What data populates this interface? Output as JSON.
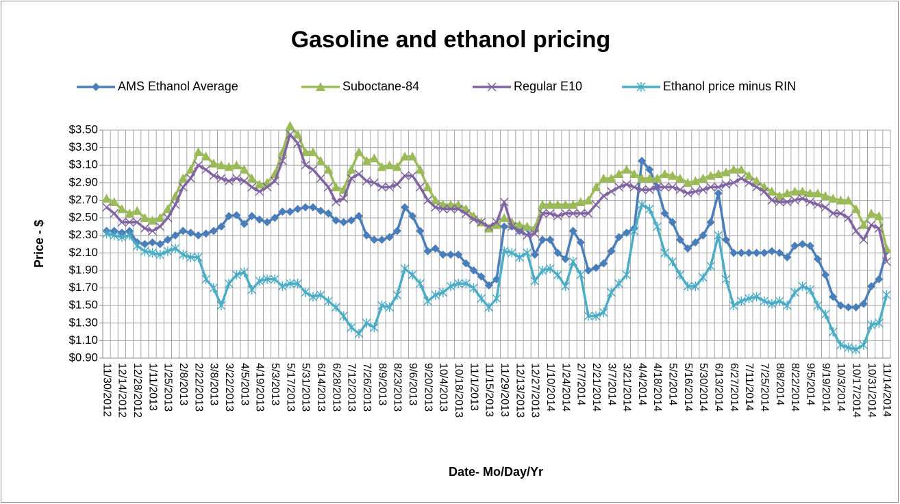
{
  "chart_data": {
    "type": "line",
    "title": "Gasoline and ethanol pricing",
    "x_label": "Date- Mo/Day/Yr",
    "y_label": "Price - $",
    "categories": [
      "11/30/2012",
      null,
      "12/14/2012",
      null,
      "12/28/2012",
      null,
      "1/11/2013",
      null,
      "1/25/2013",
      null,
      "2/8/2013",
      null,
      "2/22/2013",
      null,
      "3/8/2013",
      null,
      "3/22/2013",
      null,
      "4/5/2013",
      null,
      "4/19/2013",
      null,
      "5/3/2013",
      null,
      "5/17/2013",
      null,
      "5/31/2013",
      null,
      "6/14/2013",
      null,
      "6/28/2013",
      null,
      "7/12/2013",
      null,
      "7/26/2013",
      null,
      "8/9/2013",
      null,
      "8/23/2013",
      null,
      "9/6/2013",
      null,
      "9/20/2013",
      null,
      "10/4/2013",
      null,
      "10/18/2013",
      null,
      "11/1/2013",
      null,
      "11/15/2013",
      null,
      "11/29/2013",
      null,
      "12/13/2013",
      null,
      "12/27/2013",
      null,
      "1/10/2014",
      null,
      "1/24/2014",
      null,
      "2/7/2014",
      null,
      "2/21/2014",
      null,
      "3/7/2014",
      null,
      "3/21/2014",
      null,
      "4/4/2014",
      null,
      "4/18/2014",
      null,
      "5/2/2014",
      null,
      "5/16/2014",
      null,
      "5/30/2014",
      null,
      "6/13/2014",
      null,
      "6/27/2014",
      null,
      "7/11/2014",
      null,
      "7/25/2014",
      null,
      "8/8/2014",
      null,
      "8/22/2014",
      null,
      "9/5/2014",
      null,
      "9/19/2014",
      null,
      "10/3/2014",
      null,
      "10/17/2014",
      null,
      "10/31/2014",
      null,
      "11/14/2014"
    ],
    "series": [
      {
        "name": "AMS Ethanol Average",
        "color": "#4a7ebb",
        "marker": "diamond",
        "values": [
          2.35,
          2.35,
          2.33,
          2.35,
          2.22,
          2.2,
          2.22,
          2.2,
          2.25,
          2.3,
          2.35,
          2.33,
          2.3,
          2.32,
          2.35,
          2.4,
          2.52,
          2.53,
          2.43,
          2.52,
          2.48,
          2.45,
          2.5,
          2.57,
          2.57,
          2.6,
          2.62,
          2.62,
          2.58,
          2.55,
          2.47,
          2.45,
          2.47,
          2.52,
          2.3,
          2.25,
          2.25,
          2.28,
          2.35,
          2.62,
          2.52,
          2.35,
          2.12,
          2.15,
          2.08,
          2.08,
          2.08,
          1.98,
          1.9,
          1.83,
          1.73,
          1.8,
          2.4,
          2.4,
          2.35,
          2.38,
          2.08,
          2.25,
          2.25,
          2.1,
          2.03,
          2.35,
          2.22,
          1.9,
          1.93,
          1.98,
          2.12,
          2.28,
          2.33,
          2.38,
          3.15,
          3.05,
          2.85,
          2.55,
          2.45,
          2.25,
          2.15,
          2.22,
          2.3,
          2.45,
          2.78,
          2.25,
          2.1,
          2.1,
          2.1,
          2.1,
          2.1,
          2.12,
          2.1,
          2.05,
          2.18,
          2.2,
          2.18,
          2.03,
          1.85,
          1.6,
          1.5,
          1.48,
          1.48,
          1.52,
          1.72,
          1.8,
          2.12
        ]
      },
      {
        "name": "Suboctane-84",
        "color": "#9bbb59",
        "marker": "triangle",
        "values": [
          2.72,
          2.68,
          2.6,
          2.55,
          2.58,
          2.5,
          2.47,
          2.5,
          2.6,
          2.75,
          2.95,
          3.05,
          3.25,
          3.2,
          3.12,
          3.1,
          3.08,
          3.1,
          3.05,
          2.95,
          2.88,
          2.9,
          3.0,
          3.25,
          3.55,
          3.45,
          3.25,
          3.25,
          3.15,
          3.05,
          2.85,
          2.82,
          3.05,
          3.25,
          3.15,
          3.18,
          3.08,
          3.1,
          3.08,
          3.2,
          3.2,
          3.05,
          2.85,
          2.7,
          2.65,
          2.65,
          2.65,
          2.6,
          2.52,
          2.45,
          2.38,
          2.42,
          2.5,
          2.45,
          2.42,
          2.4,
          2.38,
          2.65,
          2.65,
          2.65,
          2.65,
          2.65,
          2.68,
          2.7,
          2.85,
          2.95,
          2.95,
          3.0,
          3.05,
          3.0,
          2.95,
          2.95,
          2.95,
          3.0,
          2.98,
          2.95,
          2.9,
          2.92,
          2.95,
          2.98,
          3.0,
          3.02,
          3.05,
          3.05,
          2.98,
          2.92,
          2.85,
          2.8,
          2.75,
          2.78,
          2.8,
          2.8,
          2.78,
          2.78,
          2.75,
          2.72,
          2.7,
          2.7,
          2.6,
          2.42,
          2.55,
          2.52,
          2.15
        ]
      },
      {
        "name": "Regular E10",
        "color": "#8064a2",
        "marker": "x",
        "values": [
          2.62,
          2.55,
          2.45,
          2.45,
          2.45,
          2.38,
          2.35,
          2.4,
          2.5,
          2.65,
          2.85,
          2.95,
          3.1,
          3.05,
          2.98,
          2.95,
          2.92,
          2.95,
          2.92,
          2.85,
          2.8,
          2.85,
          2.92,
          3.15,
          3.45,
          3.35,
          3.1,
          3.05,
          2.95,
          2.85,
          2.68,
          2.72,
          2.95,
          3.0,
          2.92,
          2.9,
          2.85,
          2.85,
          2.88,
          2.98,
          2.98,
          2.85,
          2.7,
          2.62,
          2.6,
          2.6,
          2.6,
          2.55,
          2.48,
          2.45,
          2.4,
          2.45,
          2.68,
          2.4,
          2.35,
          2.3,
          2.32,
          2.55,
          2.55,
          2.52,
          2.55,
          2.55,
          2.55,
          2.55,
          2.65,
          2.75,
          2.8,
          2.85,
          2.88,
          2.85,
          2.82,
          2.82,
          2.85,
          2.85,
          2.85,
          2.82,
          2.78,
          2.8,
          2.82,
          2.85,
          2.85,
          2.88,
          2.9,
          2.95,
          2.9,
          2.85,
          2.8,
          2.7,
          2.68,
          2.68,
          2.7,
          2.72,
          2.68,
          2.65,
          2.62,
          2.55,
          2.55,
          2.5,
          2.35,
          2.25,
          2.42,
          2.38,
          2.0
        ]
      },
      {
        "name": "Ethanol price minus RIN",
        "color": "#4bacc6",
        "marker": "star",
        "values": [
          2.32,
          2.3,
          2.28,
          2.3,
          2.18,
          2.12,
          2.1,
          2.08,
          2.12,
          2.15,
          2.08,
          2.05,
          2.05,
          1.8,
          1.7,
          1.5,
          1.75,
          1.85,
          1.88,
          1.68,
          1.78,
          1.8,
          1.8,
          1.72,
          1.75,
          1.75,
          1.65,
          1.6,
          1.62,
          1.55,
          1.48,
          1.38,
          1.25,
          1.18,
          1.3,
          1.25,
          1.5,
          1.48,
          1.62,
          1.92,
          1.85,
          1.75,
          1.55,
          1.62,
          1.65,
          1.72,
          1.75,
          1.75,
          1.7,
          1.58,
          1.48,
          1.58,
          2.12,
          2.1,
          2.05,
          2.1,
          1.78,
          1.9,
          1.92,
          1.85,
          1.72,
          2.0,
          1.85,
          1.38,
          1.38,
          1.42,
          1.65,
          1.75,
          1.85,
          2.35,
          2.65,
          2.6,
          2.4,
          2.1,
          2.0,
          1.85,
          1.72,
          1.72,
          1.82,
          1.95,
          2.3,
          1.8,
          1.5,
          1.55,
          1.58,
          1.6,
          1.55,
          1.52,
          1.55,
          1.5,
          1.65,
          1.72,
          1.68,
          1.5,
          1.4,
          1.2,
          1.05,
          1.02,
          1.0,
          1.05,
          1.28,
          1.3,
          1.62
        ]
      }
    ],
    "ylim": [
      0.9,
      3.5
    ],
    "yticks": [
      {
        "value": 0.9,
        "label": "$0.90"
      },
      {
        "value": 1.1,
        "label": "$1.10"
      },
      {
        "value": 1.3,
        "label": "$1.30"
      },
      {
        "value": 1.5,
        "label": "$1.50"
      },
      {
        "value": 1.7,
        "label": "$1.70"
      },
      {
        "value": 1.9,
        "label": "$1.90"
      },
      {
        "value": 2.1,
        "label": "$2.10"
      },
      {
        "value": 2.3,
        "label": "$2.30"
      },
      {
        "value": 2.5,
        "label": "$2.50"
      },
      {
        "value": 2.7,
        "label": "$2.70"
      },
      {
        "value": 2.9,
        "label": "$2.90"
      },
      {
        "value": 3.1,
        "label": "$3.10"
      },
      {
        "value": 3.3,
        "label": "$3.30"
      },
      {
        "value": 3.5,
        "label": "$3.50"
      }
    ],
    "grid": true,
    "legend": "top"
  }
}
